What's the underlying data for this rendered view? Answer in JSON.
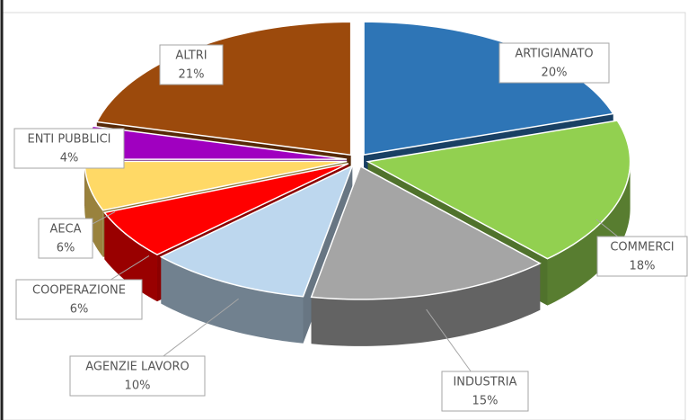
{
  "chart_data": {
    "type": "pie3d",
    "categories": [
      "ARTIGIANATO",
      "COMMERCI",
      "INDUSTRIA",
      "AGENZIE LAVORO",
      "COOPERAZIONE",
      "AECA",
      "ENTI PUBBLICI",
      "ALTRI"
    ],
    "values": [
      20,
      18,
      15,
      10,
      6,
      6,
      4,
      21
    ],
    "value_labels": [
      "20%",
      "18%",
      "15%",
      "10%",
      "6%",
      "6%",
      "4%",
      "21%"
    ],
    "colors": [
      "#2e75b6",
      "#92d050",
      "#a5a5a5",
      "#bdd7ee",
      "#ff0000",
      "#ffd966",
      "#a000c0",
      "#9c4a0c"
    ]
  }
}
